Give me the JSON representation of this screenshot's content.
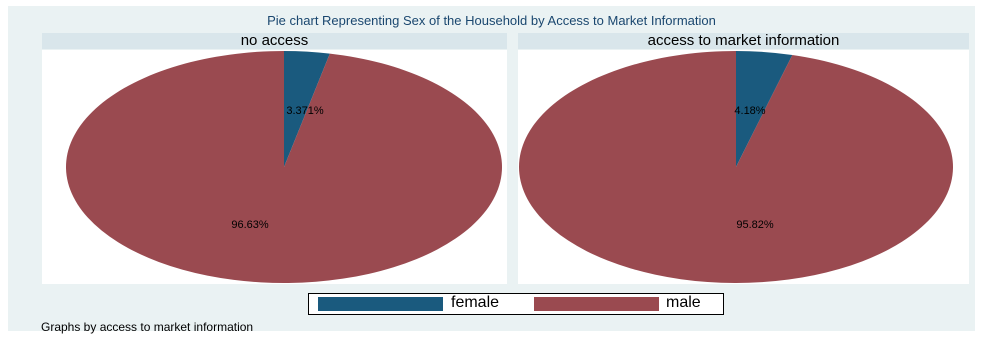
{
  "chart_data": {
    "type": "pie",
    "title": "Pie chart Representing Sex of the Household by Access to Market Information",
    "note": "Graphs by access to market information",
    "legend": {
      "placement": "bottom",
      "entries": [
        {
          "name": "female",
          "color": "#1a5a7e"
        },
        {
          "name": "male",
          "color": "#9a4a50"
        }
      ]
    },
    "panels": [
      {
        "title": "no access",
        "slices": [
          {
            "name": "female",
            "value": 3.371,
            "label": "3.371%",
            "color": "#1a5a7e"
          },
          {
            "name": "male",
            "value": 96.63,
            "label": "96.63%",
            "color": "#9a4a50"
          }
        ]
      },
      {
        "title": "access to market information",
        "slices": [
          {
            "name": "female",
            "value": 4.18,
            "label": "4.18%",
            "color": "#1a5a7e"
          },
          {
            "name": "male",
            "value": 95.82,
            "label": "95.82%",
            "color": "#9a4a50"
          }
        ]
      }
    ]
  }
}
